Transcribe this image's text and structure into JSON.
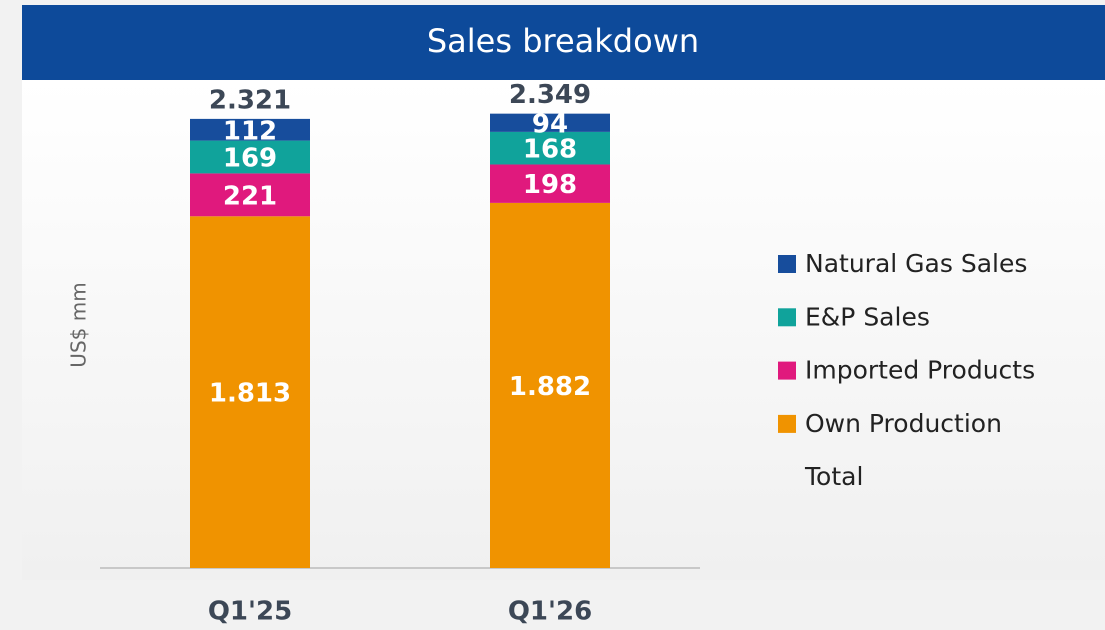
{
  "chart_data": {
    "type": "stacked_bar",
    "title": "Sales breakdown",
    "y_label": "US$ mm",
    "categories": [
      "Q1'25",
      "Q1'26"
    ],
    "ylim": [
      0,
      2500
    ],
    "series": [
      {
        "name": "Own Production",
        "color": "#f09300",
        "values": [
          1813,
          1882
        ],
        "value_labels": [
          "1.813",
          "1.882"
        ]
      },
      {
        "name": "Imported Products",
        "color": "#e0197d",
        "values": [
          221,
          198
        ]
      },
      {
        "name": "E&P Sales",
        "color": "#10a39b",
        "values": [
          169,
          168
        ]
      },
      {
        "name": "Natural Gas Sales",
        "color": "#174d9c",
        "values": [
          112,
          94
        ]
      }
    ],
    "totals": {
      "name": "Total",
      "values": [
        2321,
        2349
      ],
      "value_labels": [
        "2.321",
        "2.349"
      ]
    }
  }
}
